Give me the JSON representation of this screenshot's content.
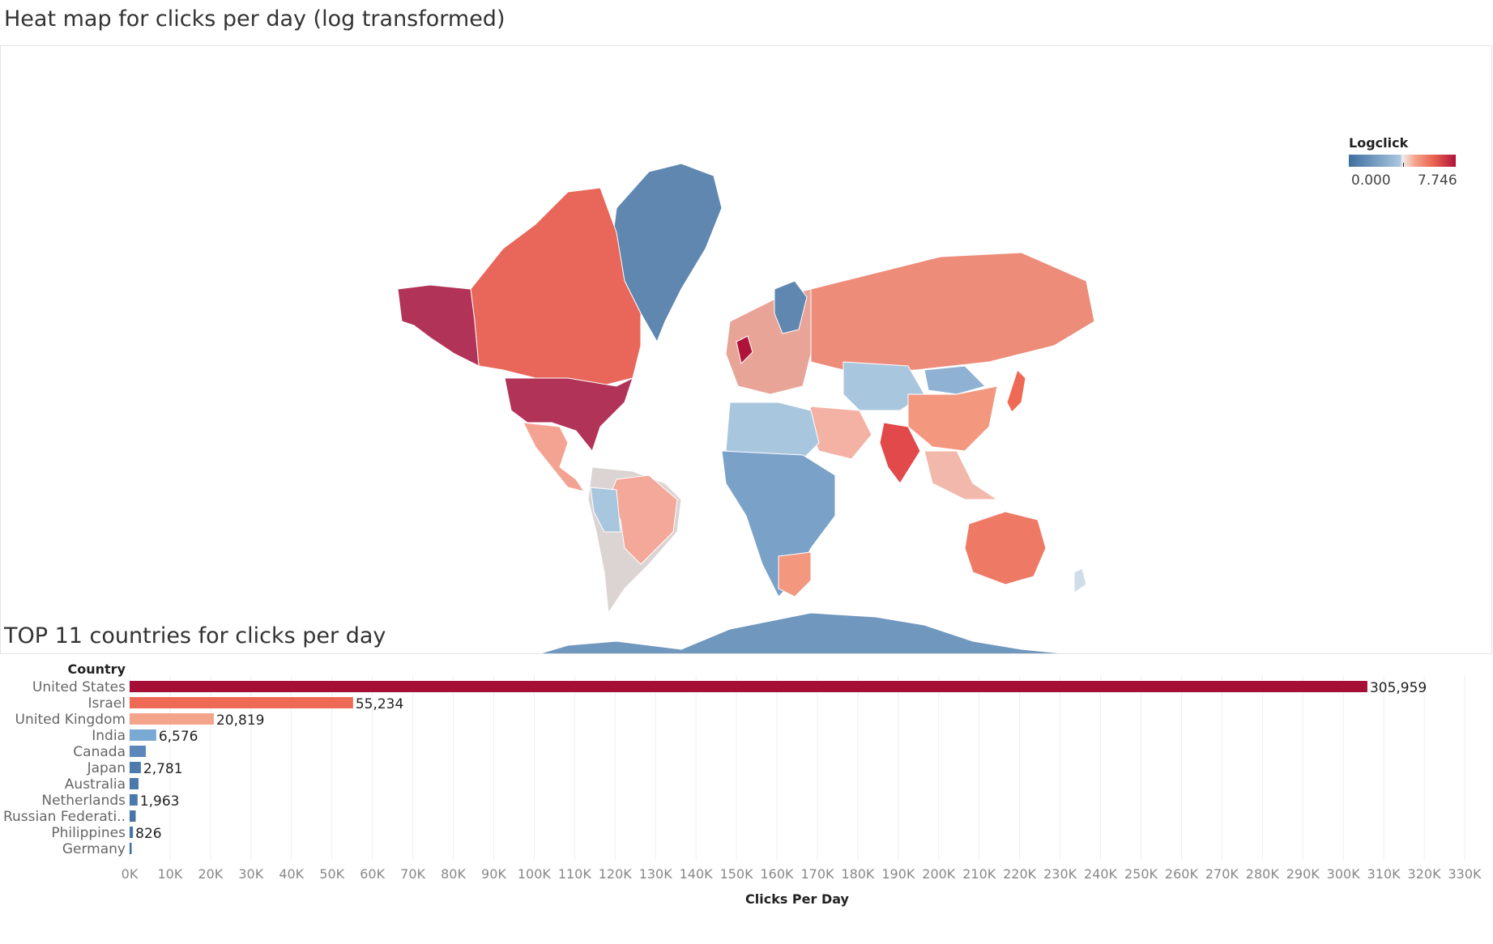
{
  "map": {
    "title": "Heat map for clicks per day (log transformed)",
    "legend": {
      "title": "Logclick",
      "min_label": "0.000",
      "max_label": "7.746"
    },
    "colors": {
      "low": "#3f6fa0",
      "light_blue": "#a9c6df",
      "neutral": "#f0eeee",
      "light_red": "#f4a38a",
      "red": "#e8604f",
      "high": "#b01339"
    }
  },
  "bars": {
    "title": "TOP 11 countries for clicks per day",
    "row_header": "Country"
  },
  "chart_data": [
    {
      "type": "map",
      "title": "Heat map for clicks per day (log transformed)",
      "legend": {
        "title": "Logclick",
        "range": [
          0.0,
          7.746
        ]
      }
    },
    {
      "type": "bar",
      "orientation": "horizontal",
      "title": "TOP 11 countries for clicks per day",
      "ylabel": "Country",
      "xlabel": "Clicks Per Day",
      "xlim": [
        0,
        330000
      ],
      "x_ticks": [
        "0K",
        "10K",
        "20K",
        "30K",
        "40K",
        "50K",
        "60K",
        "70K",
        "80K",
        "90K",
        "100K",
        "110K",
        "120K",
        "130K",
        "140K",
        "150K",
        "160K",
        "170K",
        "180K",
        "190K",
        "200K",
        "210K",
        "220K",
        "230K",
        "240K",
        "250K",
        "260K",
        "270K",
        "280K",
        "290K",
        "300K",
        "310K",
        "320K",
        "330K"
      ],
      "categories": [
        "United States",
        "Israel",
        "United Kingdom",
        "India",
        "Canada",
        "Japan",
        "Australia",
        "Netherlands",
        "Russian Federati..",
        "Philippines",
        "Germany"
      ],
      "values": [
        305959,
        55234,
        20819,
        6576,
        4000,
        2781,
        2200,
        1963,
        1500,
        826,
        500
      ],
      "data_labels": [
        "305,959",
        "55,234",
        "20,819",
        "6,576",
        "",
        "2,781",
        "",
        "1,963",
        "",
        "826",
        ""
      ],
      "colors": [
        "#a50f35",
        "#ee6a55",
        "#f5a48c",
        "#7aa9d3",
        "#5b88b8",
        "#4d7bae",
        "#4a79ac",
        "#4a79ac",
        "#4777aa",
        "#4676a9",
        "#3f6fa0"
      ],
      "grid": true
    }
  ]
}
